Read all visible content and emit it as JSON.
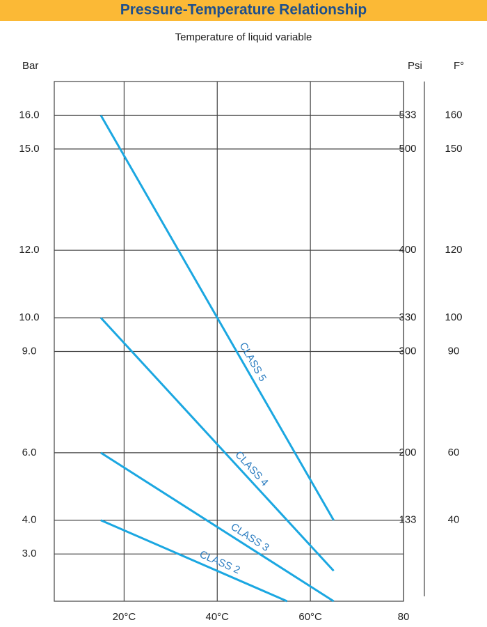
{
  "chart_data": {
    "type": "line",
    "title": "Pressure-Temperature Relationship",
    "subtitle": "Temperature of liquid variable",
    "y_label": "Bar",
    "psi_label": "Psi",
    "f_label": "F°",
    "xlim": [
      5,
      80
    ],
    "xticks": [
      {
        "value": 20,
        "label": "20°C"
      },
      {
        "value": 40,
        "label": "40°C"
      },
      {
        "value": 60,
        "label": "60°C"
      },
      80
    ],
    "ylim": [
      1.6,
      17
    ],
    "yticks": [
      {
        "value": 16,
        "label": "16.0"
      },
      {
        "value": 15,
        "label": "15.0"
      },
      {
        "value": 12,
        "label": "12.0"
      },
      {
        "value": 10,
        "label": "10.0"
      },
      {
        "value": 9,
        "label": "9.0"
      },
      {
        "value": 6,
        "label": "6.0"
      },
      {
        "value": 4,
        "label": "4.0"
      },
      {
        "value": 3,
        "label": "3.0"
      }
    ],
    "psi_values": [
      533,
      500,
      400,
      330,
      300,
      200,
      133,
      null
    ],
    "f_values": [
      160,
      150,
      120,
      100,
      90,
      60,
      40,
      null
    ],
    "grid": true,
    "series": [
      {
        "name": "CLASS 5",
        "color": "#1ba7e1",
        "x": [
          15,
          65
        ],
        "values": [
          16,
          4
        ]
      },
      {
        "name": "CLASS 4",
        "color": "#1ba7e1",
        "x": [
          15,
          65
        ],
        "values": [
          10,
          2.5
        ]
      },
      {
        "name": "CLASS 3",
        "color": "#1ba7e1",
        "x": [
          15,
          65
        ],
        "values": [
          6,
          1.6
        ]
      },
      {
        "name": "CLASS 2",
        "color": "#1ba7e1",
        "x": [
          15,
          55
        ],
        "values": [
          4,
          1.6
        ]
      }
    ]
  }
}
